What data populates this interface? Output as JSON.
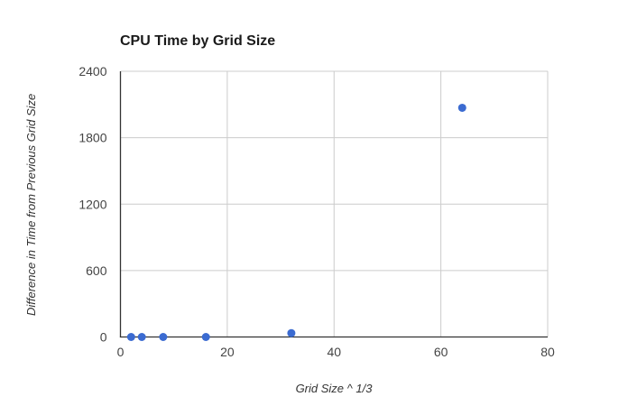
{
  "chart_data": {
    "type": "scatter",
    "title": "CPU Time by Grid Size",
    "xlabel": "Grid Size ^ 1/3",
    "ylabel": "Difference in Time from Previous Grid Size",
    "xlim": [
      0,
      80
    ],
    "ylim": [
      0,
      2400
    ],
    "xticks": [
      0,
      20,
      40,
      60,
      80
    ],
    "yticks": [
      0,
      600,
      1200,
      1800,
      2400
    ],
    "grid": true,
    "legend": "none",
    "series": [
      {
        "color": "#3b6bd1",
        "points": [
          {
            "x": 2,
            "y": 0
          },
          {
            "x": 4,
            "y": 0
          },
          {
            "x": 8,
            "y": 0
          },
          {
            "x": 16,
            "y": 0
          },
          {
            "x": 32,
            "y": 35
          },
          {
            "x": 64,
            "y": 2070
          }
        ]
      }
    ],
    "colors": {
      "grid": "#cccccc",
      "axis": "#333333",
      "tick_label": "#444444",
      "title": "#1a1a1a",
      "axis_title": "#333333",
      "background": "#ffffff"
    }
  }
}
